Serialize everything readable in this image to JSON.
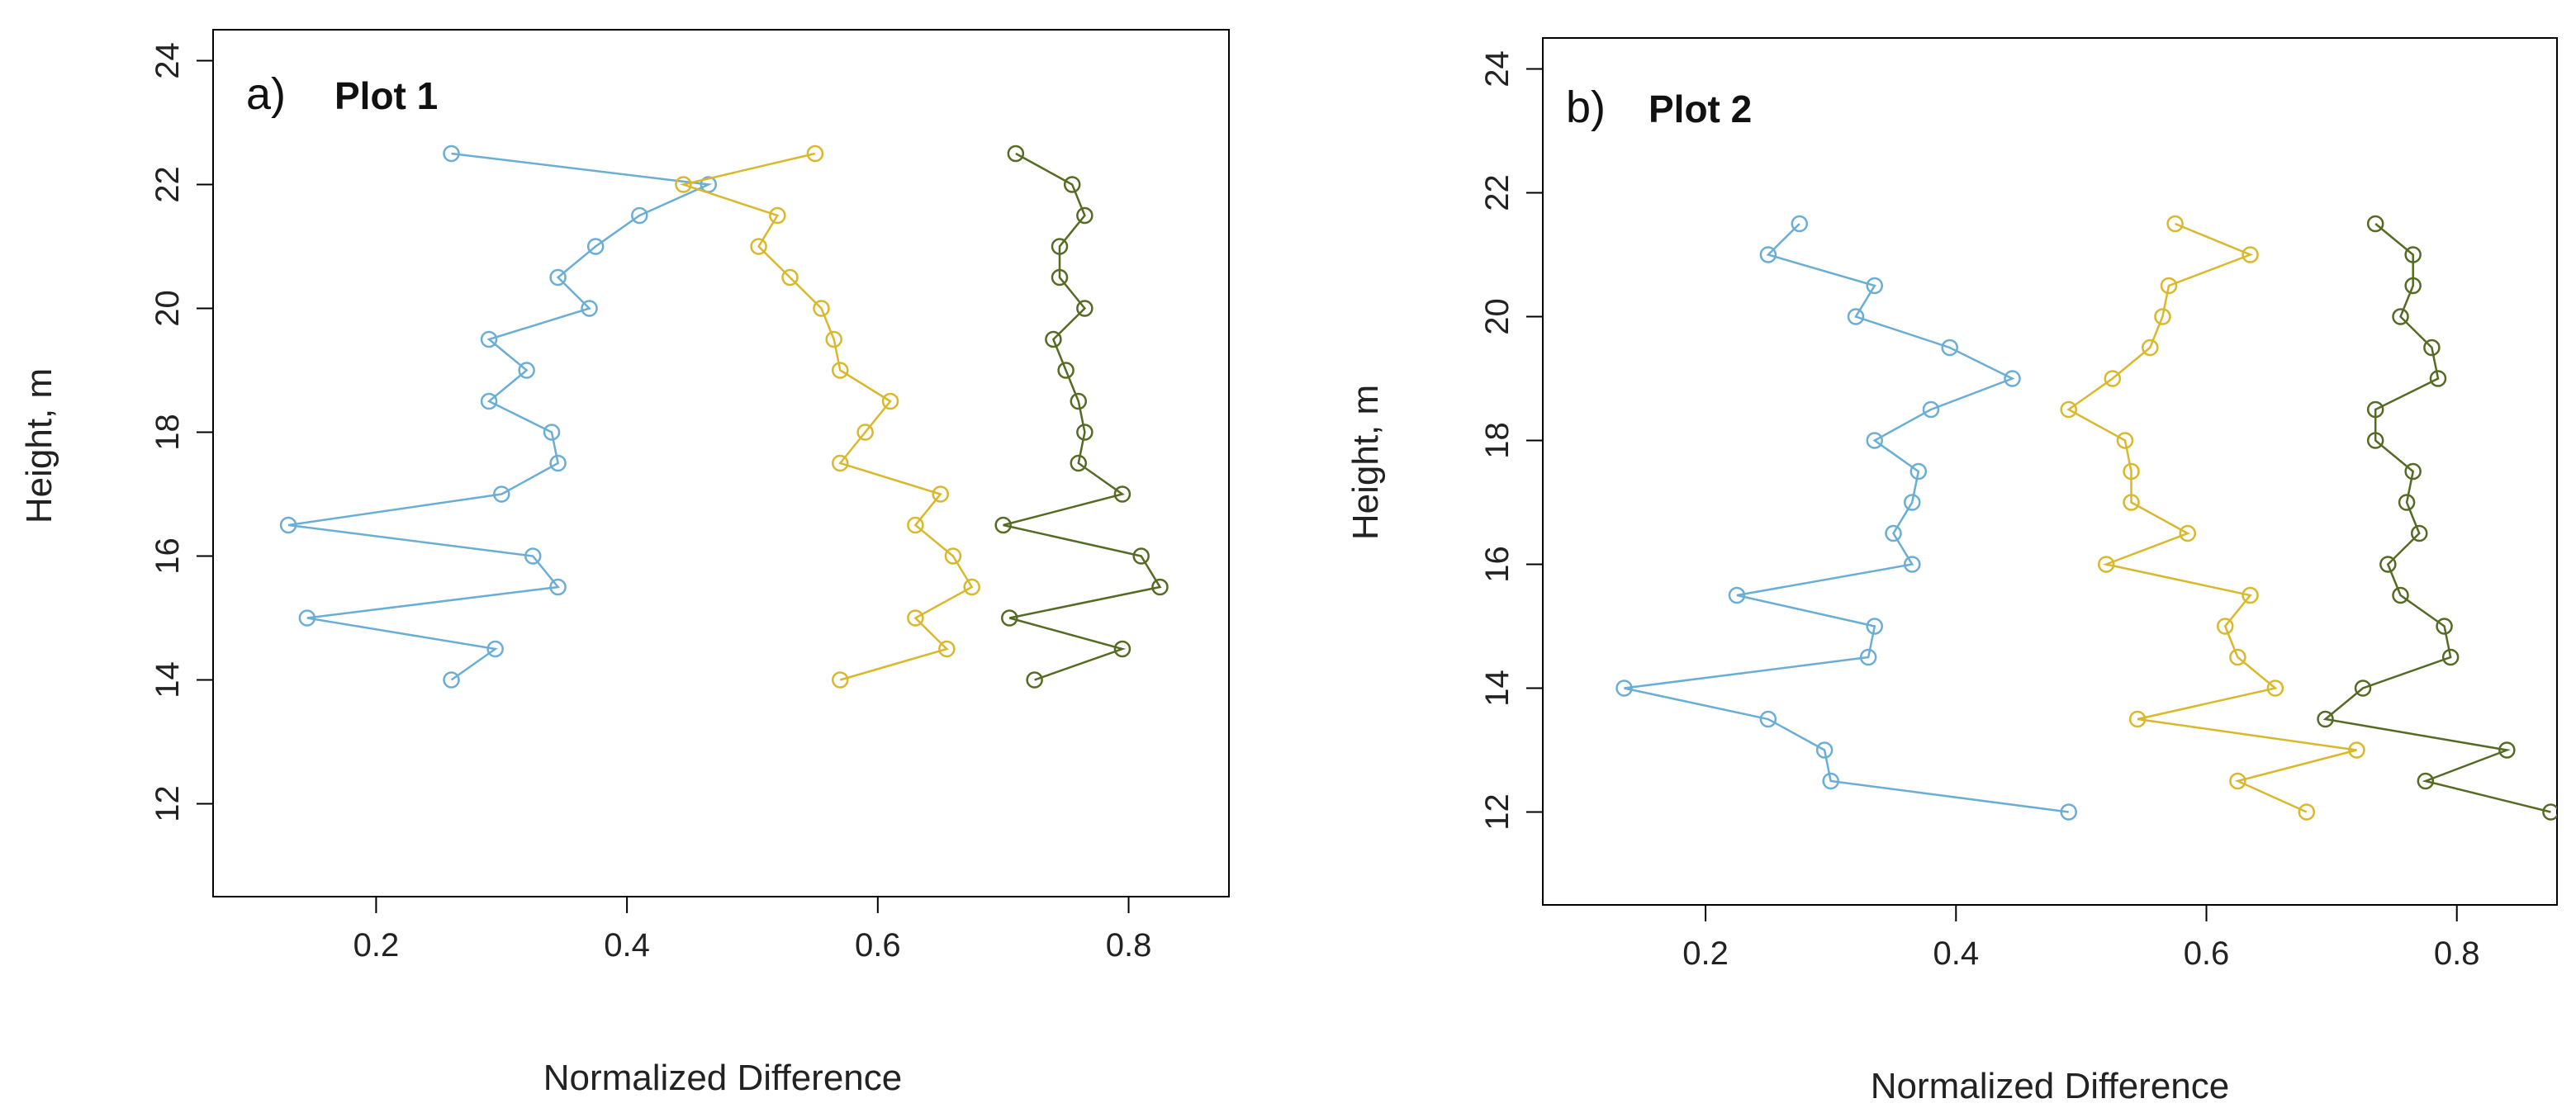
{
  "colors": {
    "blue": "#6aaed6",
    "yellow": "#d9b82c",
    "green": "#556b23"
  },
  "chart_data": [
    {
      "type": "line",
      "panel_letter": "a)",
      "title": "Plot 1",
      "xlabel": "Normalized Difference",
      "ylabel": "Height, m",
      "xlim": [
        0.07,
        0.88
      ],
      "ylim": [
        10.5,
        24.5
      ],
      "xticks": [
        0.2,
        0.4,
        0.6,
        0.8
      ],
      "xtick_labels": [
        "0.2",
        "0.4",
        "0.6",
        "0.8"
      ],
      "yticks": [
        12,
        14,
        16,
        18,
        20,
        22,
        24
      ],
      "ytick_labels": [
        "12",
        "14",
        "16",
        "18",
        "20",
        "22",
        "24"
      ],
      "grid": false,
      "series": [
        {
          "name": "blue",
          "color": "#6aaed6",
          "x": [
            0.26,
            0.465,
            0.41,
            0.375,
            0.345,
            0.37,
            0.29,
            0.32,
            0.29,
            0.34,
            0.345,
            0.3,
            0.13,
            0.325,
            0.345,
            0.145,
            0.295,
            0.26
          ],
          "y": [
            22.5,
            22,
            21.5,
            21,
            20.5,
            20,
            19.5,
            19,
            18.5,
            18,
            17.5,
            17,
            16.5,
            16,
            15.5,
            15,
            14.5,
            14
          ]
        },
        {
          "name": "yellow",
          "color": "#d9b82c",
          "x": [
            0.55,
            0.445,
            0.52,
            0.505,
            0.53,
            0.555,
            0.565,
            0.57,
            0.61,
            0.59,
            0.57,
            0.65,
            0.63,
            0.66,
            0.675,
            0.63,
            0.655,
            0.57
          ],
          "y": [
            22.5,
            22,
            21.5,
            21,
            20.5,
            20,
            19.5,
            19,
            18.5,
            18,
            17.5,
            17,
            16.5,
            16,
            15.5,
            15,
            14.5,
            14
          ]
        },
        {
          "name": "green",
          "color": "#556b23",
          "x": [
            0.71,
            0.755,
            0.765,
            0.745,
            0.745,
            0.765,
            0.74,
            0.75,
            0.76,
            0.765,
            0.76,
            0.795,
            0.7,
            0.81,
            0.825,
            0.705,
            0.795,
            0.725
          ],
          "y": [
            22.5,
            22,
            21.5,
            21,
            20.5,
            20,
            19.5,
            19,
            18.5,
            18,
            17.5,
            17,
            16.5,
            16,
            15.5,
            15,
            14.5,
            14
          ]
        }
      ]
    },
    {
      "type": "line",
      "panel_letter": "b)",
      "title": "Plot 2",
      "xlabel": "Normalized Difference",
      "ylabel": "Height, m",
      "xlim": [
        0.07,
        0.88
      ],
      "ylim": [
        10.5,
        24.5
      ],
      "xticks": [
        0.2,
        0.4,
        0.6,
        0.8
      ],
      "xtick_labels": [
        "0.2",
        "0.4",
        "0.6",
        "0.8"
      ],
      "yticks": [
        12,
        14,
        16,
        18,
        20,
        22,
        24
      ],
      "ytick_labels": [
        "12",
        "14",
        "16",
        "18",
        "20",
        "22",
        "24"
      ],
      "grid": false,
      "series": [
        {
          "name": "blue",
          "color": "#6aaed6",
          "x": [
            0.275,
            0.25,
            0.335,
            0.32,
            0.395,
            0.445,
            0.38,
            0.335,
            0.37,
            0.365,
            0.35,
            0.365,
            0.225,
            0.335,
            0.33,
            0.135,
            0.25,
            0.295,
            0.3,
            0.49
          ],
          "y": [
            21.5,
            21,
            20.5,
            20,
            19.5,
            19,
            18.5,
            18,
            17.5,
            17,
            16.5,
            16,
            15.5,
            15,
            14.5,
            14,
            13.5,
            13,
            12.5,
            12
          ]
        },
        {
          "name": "yellow",
          "color": "#d9b82c",
          "x": [
            0.575,
            0.635,
            0.57,
            0.565,
            0.555,
            0.525,
            0.49,
            0.535,
            0.54,
            0.54,
            0.585,
            0.52,
            0.635,
            0.615,
            0.625,
            0.655,
            0.545,
            0.72,
            0.625,
            0.68
          ],
          "y": [
            21.5,
            21,
            20.5,
            20,
            19.5,
            19,
            18.5,
            18,
            17.5,
            17,
            16.5,
            16,
            15.5,
            15,
            14.5,
            14,
            13.5,
            13,
            12.5,
            12
          ]
        },
        {
          "name": "green",
          "color": "#556b23",
          "x": [
            0.735,
            0.765,
            0.765,
            0.755,
            0.78,
            0.785,
            0.735,
            0.735,
            0.765,
            0.76,
            0.77,
            0.745,
            0.755,
            0.79,
            0.795,
            0.725,
            0.695,
            0.84,
            0.775,
            0.875
          ],
          "y": [
            21.5,
            21,
            20.5,
            20,
            19.5,
            19,
            18.5,
            18,
            17.5,
            17,
            16.5,
            16,
            15.5,
            15,
            14.5,
            14,
            13.5,
            13,
            12.5,
            12
          ]
        }
      ]
    }
  ]
}
